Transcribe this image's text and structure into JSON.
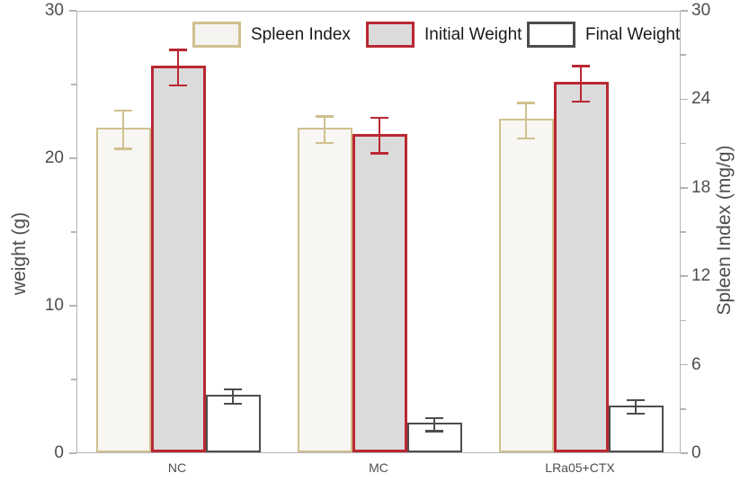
{
  "chart_data": {
    "type": "bar",
    "title": "",
    "categories": [
      "NC",
      "MC",
      "LRa05+CTX"
    ],
    "series": [
      {
        "name": "Spleen Index",
        "axis": "right",
        "values": [
          22.0,
          22.0,
          22.6
        ],
        "errors": [
          1.3,
          0.9,
          1.2
        ],
        "edge_color": "#cfc08e",
        "fill_color": "#f8f6f2",
        "legend_fill": "#f5f3ef",
        "edge_width": 2
      },
      {
        "name": "Initial Weight",
        "axis": "left",
        "values": [
          26.2,
          21.6,
          25.1
        ],
        "errors": [
          1.2,
          1.2,
          1.2
        ],
        "edge_color": "#b92832",
        "fill_color": "#dbdbdb",
        "legend_fill": "#dbdbdb",
        "edge_width": 3
      },
      {
        "name": "Final Weight",
        "axis": "left",
        "values": [
          3.9,
          2.0,
          3.2
        ],
        "errors": [
          0.5,
          0.45,
          0.45
        ],
        "edge_color": "#4d4d4d",
        "fill_color": "#ffffff",
        "legend_fill": "#ffffff",
        "edge_width": 2
      }
    ],
    "left_axis": {
      "label": "weight (g)",
      "range": [
        0,
        30
      ],
      "major_ticks": [
        0,
        10,
        20,
        30
      ],
      "minor_ticks": [
        5,
        15,
        25
      ]
    },
    "right_axis": {
      "label": "Spleen Index (mg/g)",
      "range": [
        0,
        30
      ],
      "major_ticks": [
        0,
        6,
        12,
        18,
        24,
        30
      ],
      "minor_ticks": [
        3,
        9,
        15,
        21,
        27
      ]
    },
    "legend": {
      "position": "top-inside",
      "entries": [
        "Spleen Index",
        "Initial Weight",
        "Final Weight"
      ]
    },
    "grid": false,
    "colors": {
      "axis_line": "#b5b5b5",
      "tick_label": "#4d4d4d",
      "axis_label": "#4d4d4d",
      "legend_text": "#1a1a1a",
      "background": "#ffffff"
    }
  }
}
